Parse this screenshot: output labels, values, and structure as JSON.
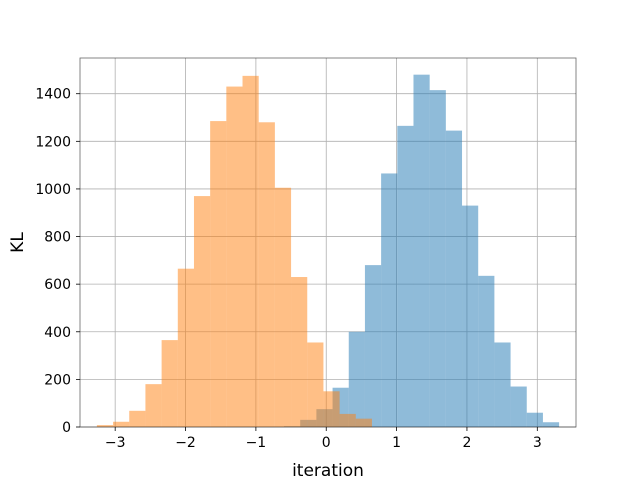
{
  "chart_data": {
    "type": "bar",
    "xlabel": "iteration",
    "ylabel": "KL",
    "xlim": [
      -3.5,
      3.55
    ],
    "ylim": [
      0,
      1550
    ],
    "x_ticks": [
      -3,
      -2,
      -1,
      0,
      1,
      2,
      3
    ],
    "y_ticks": [
      0,
      200,
      400,
      600,
      800,
      1000,
      1200,
      1400
    ],
    "grid": true,
    "series": [
      {
        "color": "#1f77b4",
        "opacity": 0.5,
        "bin_edges": [
          -0.6,
          -0.37,
          -0.14,
          0.09,
          0.32,
          0.55,
          0.78,
          1.01,
          1.24,
          1.47,
          1.7,
          1.93,
          2.16,
          2.39,
          2.62,
          2.85,
          3.08,
          3.31
        ],
        "counts": [
          3,
          30,
          75,
          165,
          400,
          680,
          1065,
          1265,
          1480,
          1415,
          1245,
          930,
          635,
          355,
          170,
          60,
          20
        ]
      },
      {
        "color": "#ff7f0e",
        "opacity": 0.5,
        "bin_edges": [
          -3.26,
          -3.03,
          -2.8,
          -2.57,
          -2.34,
          -2.11,
          -1.88,
          -1.65,
          -1.42,
          -1.19,
          -0.96,
          -0.73,
          -0.5,
          -0.27,
          -0.04,
          0.19,
          0.42,
          0.65
        ],
        "counts": [
          8,
          22,
          68,
          180,
          365,
          665,
          970,
          1285,
          1430,
          1475,
          1280,
          1005,
          630,
          355,
          150,
          55,
          35
        ]
      }
    ]
  }
}
